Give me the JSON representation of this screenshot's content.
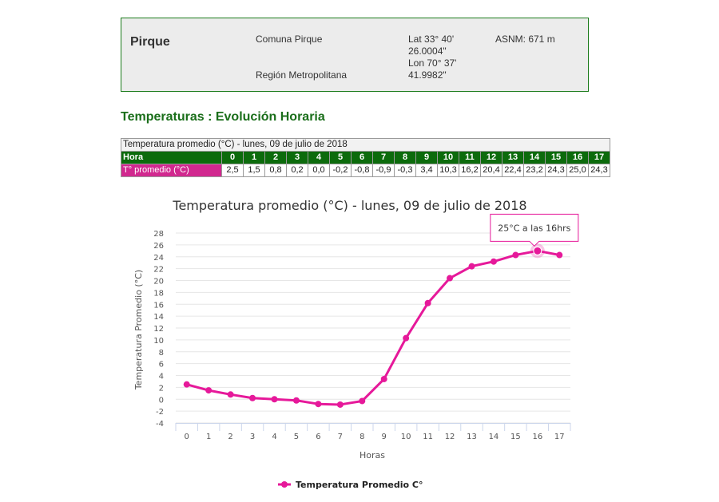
{
  "station": {
    "name": "Pirque",
    "comuna": "Comuna Pirque",
    "region": "Región Metropolitana",
    "lat": "Lat 33° 40'",
    "lat_sec": "26.0004\"",
    "lon": "Lon 70° 37'",
    "lon_sec": "41.9982\"",
    "asnm": "ASNM: 671 m"
  },
  "section_title": "Temperaturas : Evolución Horaria",
  "table": {
    "caption": "Temperatura promedio (°C) - lunes, 09 de julio de 2018",
    "hora_label": "Hora",
    "temp_label": "T° promedio (°C)",
    "hours": [
      "0",
      "1",
      "2",
      "3",
      "4",
      "5",
      "6",
      "7",
      "8",
      "9",
      "10",
      "11",
      "12",
      "13",
      "14",
      "15",
      "16",
      "17"
    ],
    "temps": [
      "2,5",
      "1,5",
      "0,8",
      "0,2",
      "0,0",
      "-0,2",
      "-0,8",
      "-0,9",
      "-0,3",
      "3,4",
      "10,3",
      "16,2",
      "20,4",
      "22,4",
      "23,2",
      "24,3",
      "25,0",
      "24,3"
    ]
  },
  "colors": {
    "series": "#e6199a",
    "grid": "#e6e6e6",
    "hora_bg": "#0c6b0c",
    "temp_label_bg": "#d1288f"
  },
  "chart_data": {
    "type": "line",
    "title": "Temperatura promedio (°C) - lunes, 09 de julio de 2018",
    "xlabel": "Horas",
    "ylabel": "Temperatura Promedio (°C)",
    "categories": [
      "0",
      "1",
      "2",
      "3",
      "4",
      "5",
      "6",
      "7",
      "8",
      "9",
      "10",
      "11",
      "12",
      "13",
      "14",
      "15",
      "16",
      "17"
    ],
    "ylim": [
      -4,
      28
    ],
    "yticks": [
      "28",
      "26",
      "24",
      "22",
      "20",
      "18",
      "16",
      "14",
      "12",
      "10",
      "8",
      "6",
      "4",
      "2",
      "0",
      "-2",
      "-4"
    ],
    "grid": true,
    "legend_position": "bottom",
    "series": [
      {
        "name": "Temperatura Promedio C°",
        "values": [
          2.5,
          1.5,
          0.8,
          0.2,
          0.0,
          -0.2,
          -0.8,
          -0.9,
          -0.3,
          3.4,
          10.3,
          16.2,
          20.4,
          22.4,
          23.2,
          24.3,
          25.0,
          24.3
        ]
      }
    ],
    "tooltip": {
      "text": "25°C a las 16hrs",
      "index": 16
    }
  }
}
